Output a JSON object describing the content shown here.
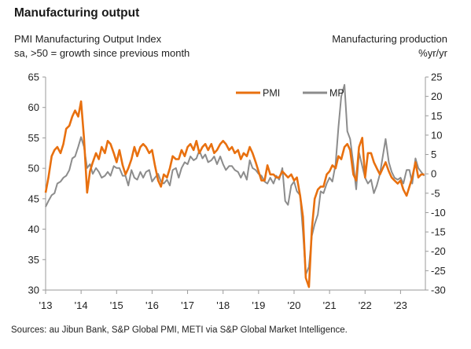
{
  "header": {
    "title": "Manufacturing output",
    "left_label_line1": "PMI Manufacturing Output Index",
    "left_label_line2": "sa, >50 = growth since previous month",
    "right_label_line1": "Manufacturing production",
    "right_label_line2": "%yr/yr"
  },
  "footer": {
    "source": "Sources: au Jibun Bank, S&P Global PMI, METI via S&P Global Market Intelligence."
  },
  "colors": {
    "pmi": "#e8700f",
    "mp": "#8c8c8c",
    "axis": "#9a9a9a",
    "grid": "#d9d9d9"
  },
  "chart_data": {
    "type": "line",
    "title": "Manufacturing output",
    "x_axis": {
      "tick_labels": [
        "'13",
        "'14",
        "'15",
        "'16",
        "'17",
        "'18",
        "'19",
        "'20",
        "'21",
        "'22",
        "'23"
      ],
      "range": [
        2013.0,
        2023.7
      ]
    },
    "y_axis_left": {
      "label": "PMI Manufacturing Output Index",
      "range": [
        30,
        65
      ],
      "ticks": [
        30,
        35,
        40,
        45,
        50,
        55,
        60,
        65
      ]
    },
    "y_axis_right": {
      "label": "Manufacturing production %yr/yr",
      "range": [
        -30,
        25
      ],
      "ticks": [
        -30,
        -25,
        -20,
        -15,
        -10,
        -5,
        0,
        5,
        10,
        15,
        20,
        25
      ]
    },
    "legend": {
      "position": "top-right",
      "entries": [
        "PMI",
        "MP"
      ]
    },
    "series": [
      {
        "name": "PMI",
        "axis": "left",
        "x": [
          2013.0,
          2013.08,
          2013.17,
          2013.25,
          2013.33,
          2013.42,
          2013.5,
          2013.58,
          2013.67,
          2013.75,
          2013.83,
          2013.92,
          2014.0,
          2014.08,
          2014.17,
          2014.25,
          2014.33,
          2014.42,
          2014.5,
          2014.58,
          2014.67,
          2014.75,
          2014.83,
          2014.92,
          2015.0,
          2015.08,
          2015.17,
          2015.25,
          2015.33,
          2015.42,
          2015.5,
          2015.58,
          2015.67,
          2015.75,
          2015.83,
          2015.92,
          2016.0,
          2016.08,
          2016.17,
          2016.25,
          2016.33,
          2016.42,
          2016.5,
          2016.58,
          2016.67,
          2016.75,
          2016.83,
          2016.92,
          2017.0,
          2017.08,
          2017.17,
          2017.25,
          2017.33,
          2017.42,
          2017.5,
          2017.58,
          2017.67,
          2017.75,
          2017.83,
          2017.92,
          2018.0,
          2018.08,
          2018.17,
          2018.25,
          2018.33,
          2018.42,
          2018.5,
          2018.58,
          2018.67,
          2018.75,
          2018.83,
          2018.92,
          2019.0,
          2019.08,
          2019.17,
          2019.25,
          2019.33,
          2019.42,
          2019.5,
          2019.58,
          2019.67,
          2019.75,
          2019.83,
          2019.92,
          2020.0,
          2020.08,
          2020.17,
          2020.25,
          2020.33,
          2020.42,
          2020.5,
          2020.58,
          2020.67,
          2020.75,
          2020.83,
          2020.92,
          2021.0,
          2021.08,
          2021.17,
          2021.25,
          2021.33,
          2021.42,
          2021.5,
          2021.58,
          2021.67,
          2021.75,
          2021.83,
          2021.92,
          2022.0,
          2022.08,
          2022.17,
          2022.25,
          2022.33,
          2022.42,
          2022.5,
          2022.58,
          2022.67,
          2022.75,
          2022.83,
          2022.92,
          2023.0,
          2023.08,
          2023.17,
          2023.25,
          2023.33,
          2023.42,
          2023.5,
          2023.58,
          2023.67
        ],
        "values": [
          46.0,
          48.5,
          52.0,
          53.0,
          53.5,
          52.5,
          54.0,
          56.5,
          57.0,
          58.5,
          59.5,
          58.5,
          61.0,
          55.0,
          46.0,
          49.5,
          51.0,
          52.5,
          51.5,
          53.5,
          52.5,
          54.5,
          54.0,
          52.5,
          51.0,
          53.0,
          50.5,
          49.0,
          50.0,
          51.5,
          53.5,
          52.0,
          53.5,
          54.0,
          53.5,
          52.5,
          53.0,
          50.5,
          48.0,
          47.0,
          49.0,
          48.5,
          50.0,
          52.0,
          51.5,
          51.5,
          53.0,
          52.0,
          53.5,
          54.0,
          53.0,
          54.5,
          52.5,
          53.5,
          54.0,
          53.0,
          54.0,
          52.5,
          53.0,
          54.0,
          54.5,
          54.0,
          53.0,
          53.5,
          52.5,
          53.0,
          51.5,
          52.5,
          52.0,
          53.5,
          52.5,
          51.0,
          49.5,
          48.0,
          48.0,
          50.5,
          49.0,
          49.0,
          48.5,
          48.5,
          49.5,
          49.0,
          48.5,
          49.0,
          48.0,
          48.5,
          45.5,
          42.0,
          32.0,
          30.5,
          40.0,
          45.0,
          46.5,
          47.0,
          47.0,
          49.0,
          49.5,
          50.5,
          50.0,
          52.0,
          51.5,
          53.5,
          54.0,
          53.0,
          49.0,
          48.0,
          53.5,
          55.0,
          48.5,
          52.5,
          52.5,
          51.0,
          50.0,
          49.0,
          50.0,
          51.0,
          49.5,
          48.5,
          48.0,
          47.5,
          48.0,
          46.5,
          45.5,
          47.0,
          48.5,
          51.0,
          48.5,
          49.0,
          49.0
        ]
      },
      {
        "name": "MP",
        "axis": "right",
        "x": [
          2013.0,
          2013.08,
          2013.17,
          2013.25,
          2013.33,
          2013.42,
          2013.5,
          2013.58,
          2013.67,
          2013.75,
          2013.83,
          2013.92,
          2014.0,
          2014.08,
          2014.17,
          2014.25,
          2014.33,
          2014.42,
          2014.5,
          2014.58,
          2014.67,
          2014.75,
          2014.83,
          2014.92,
          2015.0,
          2015.08,
          2015.17,
          2015.25,
          2015.33,
          2015.42,
          2015.5,
          2015.58,
          2015.67,
          2015.75,
          2015.83,
          2015.92,
          2016.0,
          2016.08,
          2016.17,
          2016.25,
          2016.33,
          2016.42,
          2016.5,
          2016.58,
          2016.67,
          2016.75,
          2016.83,
          2016.92,
          2017.0,
          2017.08,
          2017.17,
          2017.25,
          2017.33,
          2017.42,
          2017.5,
          2017.58,
          2017.67,
          2017.75,
          2017.83,
          2017.92,
          2018.0,
          2018.08,
          2018.17,
          2018.25,
          2018.33,
          2018.42,
          2018.5,
          2018.58,
          2018.67,
          2018.75,
          2018.83,
          2018.92,
          2019.0,
          2019.08,
          2019.17,
          2019.25,
          2019.33,
          2019.42,
          2019.5,
          2019.58,
          2019.67,
          2019.75,
          2019.83,
          2019.92,
          2020.0,
          2020.08,
          2020.17,
          2020.25,
          2020.33,
          2020.42,
          2020.5,
          2020.58,
          2020.67,
          2020.75,
          2020.83,
          2020.92,
          2021.0,
          2021.08,
          2021.17,
          2021.25,
          2021.33,
          2021.42,
          2021.5,
          2021.58,
          2021.67,
          2021.75,
          2021.83,
          2021.92,
          2022.0,
          2022.08,
          2022.17,
          2022.25,
          2022.33,
          2022.42,
          2022.5,
          2022.58,
          2022.67,
          2022.75,
          2022.83,
          2022.92,
          2023.0,
          2023.08,
          2023.17,
          2023.25,
          2023.33,
          2023.42,
          2023.5,
          2023.58,
          2023.67
        ],
        "values": [
          -8.5,
          -7.0,
          -5.5,
          -5.0,
          -2.5,
          -2.0,
          -1.0,
          -0.5,
          1.0,
          4.0,
          4.5,
          7.0,
          9.5,
          7.0,
          1.5,
          2.5,
          0.0,
          1.5,
          0.5,
          -1.0,
          -0.5,
          0.5,
          -0.5,
          2.0,
          1.5,
          1.5,
          -0.5,
          -0.5,
          -3.0,
          1.0,
          -1.0,
          -1.5,
          0.5,
          -1.0,
          0.5,
          1.0,
          -2.0,
          -1.0,
          0.0,
          -2.0,
          -2.5,
          -1.5,
          -3.0,
          1.0,
          1.5,
          -1.0,
          1.5,
          3.0,
          2.5,
          4.5,
          3.5,
          4.0,
          6.0,
          4.0,
          5.0,
          3.0,
          3.5,
          4.5,
          2.5,
          4.5,
          2.5,
          1.0,
          2.0,
          2.0,
          1.0,
          0.5,
          -1.0,
          0.5,
          -1.5,
          3.5,
          1.5,
          1.0,
          0.0,
          -0.5,
          -2.0,
          -2.5,
          -1.0,
          -2.5,
          -0.5,
          -1.5,
          1.5,
          -7.0,
          -8.0,
          -3.0,
          -2.0,
          -4.5,
          -5.5,
          -15.0,
          -26.0,
          -24.0,
          -16.0,
          -13.0,
          -10.5,
          -4.5,
          -5.0,
          -2.5,
          -1.0,
          -2.0,
          2.5,
          12.0,
          20.0,
          23.0,
          11.0,
          9.0,
          2.5,
          -4.0,
          5.5,
          2.0,
          -1.0,
          -2.5,
          -1.5,
          -5.0,
          -3.0,
          0.0,
          4.5,
          9.0,
          3.0,
          0.5,
          -1.0,
          -1.5,
          -1.0,
          -2.5,
          1.0,
          1.0,
          -2.5,
          4.0,
          1.5,
          0.5,
          -0.5
        ]
      }
    ]
  }
}
